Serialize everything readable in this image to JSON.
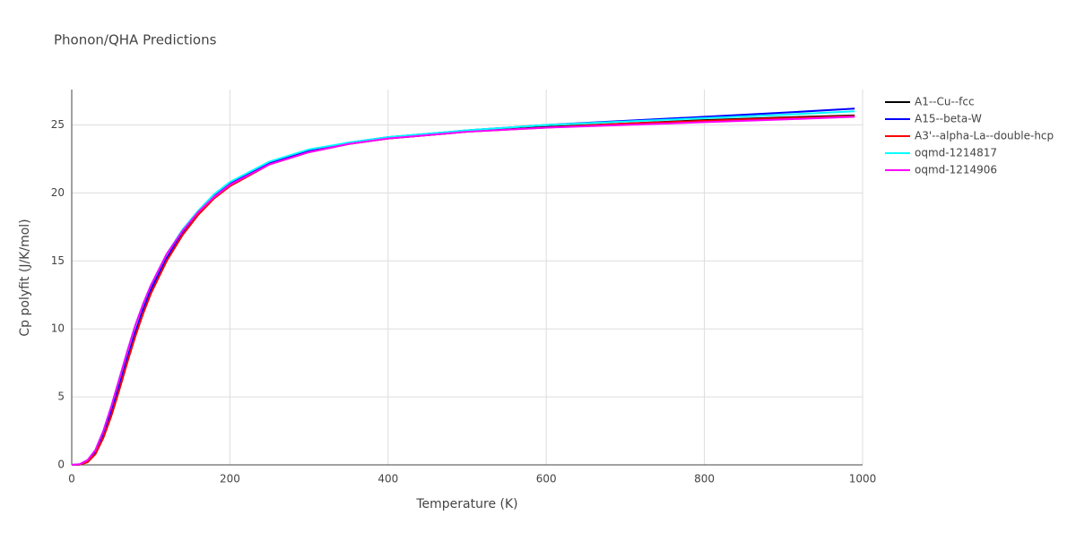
{
  "chart_data": {
    "type": "line",
    "title": "Phonon/QHA Predictions",
    "x_label": "Temperature (K)",
    "y_label": "Cp polyfit (J/K/mol)",
    "x": [
      0,
      10,
      20,
      30,
      40,
      50,
      60,
      70,
      80,
      90,
      100,
      120,
      140,
      160,
      180,
      200,
      250,
      300,
      350,
      400,
      500,
      600,
      700,
      800,
      900,
      990
    ],
    "series": [
      {
        "name": "A1--Cu--fcc",
        "color": "#000000",
        "values": [
          0,
          0.02,
          0.2,
          0.8,
          2.0,
          3.6,
          5.5,
          7.5,
          9.4,
          11.1,
          12.6,
          15.0,
          16.9,
          18.4,
          19.6,
          20.5,
          22.1,
          23.0,
          23.6,
          24.0,
          24.5,
          24.85,
          25.1,
          25.35,
          25.55,
          25.7
        ]
      },
      {
        "name": "A15--beta-W",
        "color": "#0000ff",
        "values": [
          0,
          0.03,
          0.25,
          0.9,
          2.2,
          3.9,
          5.8,
          7.8,
          9.7,
          11.4,
          12.9,
          15.2,
          17.1,
          18.6,
          19.8,
          20.7,
          22.2,
          23.1,
          23.7,
          24.1,
          24.6,
          25.0,
          25.3,
          25.6,
          25.9,
          26.2
        ]
      },
      {
        "name": "A3'--alpha-La--double-hcp",
        "color": "#ff0000",
        "values": [
          0,
          0.02,
          0.2,
          0.8,
          2.0,
          3.6,
          5.5,
          7.5,
          9.4,
          11.1,
          12.6,
          15.0,
          16.9,
          18.4,
          19.6,
          20.5,
          22.1,
          23.0,
          23.6,
          24.0,
          24.5,
          24.8,
          25.1,
          25.3,
          25.5,
          25.65
        ]
      },
      {
        "name": "oqmd-1214817",
        "color": "#00ffff",
        "values": [
          0,
          0.05,
          0.35,
          1.1,
          2.5,
          4.3,
          6.3,
          8.3,
          10.2,
          11.8,
          13.2,
          15.5,
          17.3,
          18.7,
          19.9,
          20.8,
          22.3,
          23.2,
          23.7,
          24.1,
          24.6,
          25.0,
          25.25,
          25.5,
          25.75,
          26.0
        ]
      },
      {
        "name": "oqmd-1214906",
        "color": "#ff00ff",
        "values": [
          0,
          0.05,
          0.35,
          1.1,
          2.5,
          4.3,
          6.3,
          8.3,
          10.2,
          11.8,
          13.2,
          15.5,
          17.2,
          18.6,
          19.7,
          20.6,
          22.1,
          23.0,
          23.6,
          24.0,
          24.5,
          24.8,
          25.0,
          25.2,
          25.4,
          25.6
        ]
      }
    ],
    "xlim": [
      0,
      1000
    ],
    "ylim": [
      0,
      27.6
    ],
    "xticks": [
      0,
      200,
      400,
      600,
      800,
      1000
    ],
    "yticks": [
      0,
      5,
      10,
      15,
      20,
      25
    ],
    "grid": true
  }
}
